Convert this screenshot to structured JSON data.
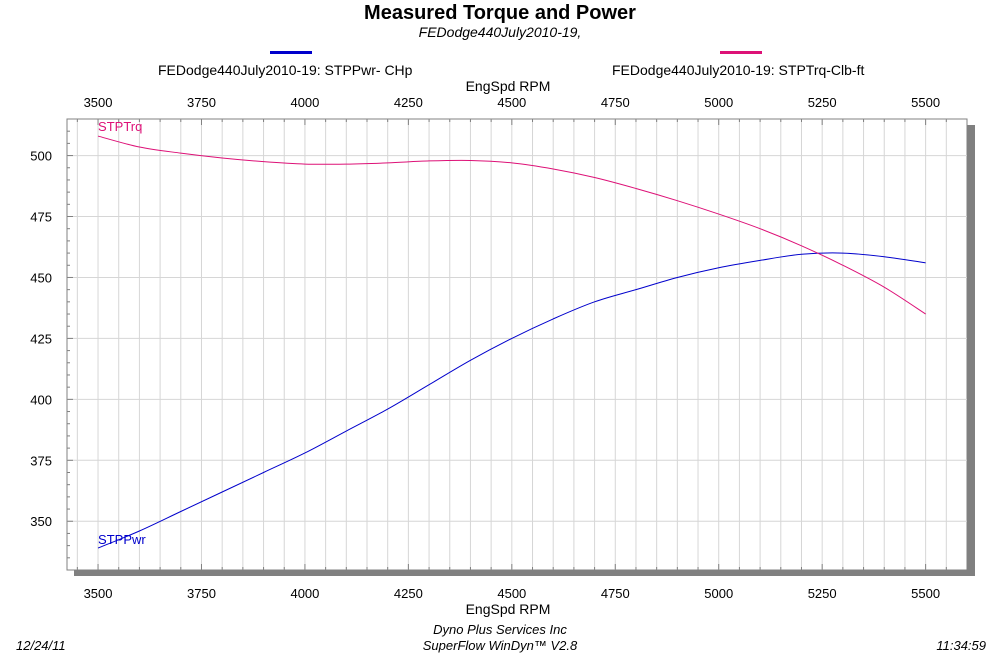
{
  "header": {
    "title": "Measured Torque and Power",
    "subtitle": "FEDodge440July2010-19,"
  },
  "legend": [
    {
      "label": "FEDodge440July2010-19: STPPwr- CHp",
      "color": "#0000cc"
    },
    {
      "label": "FEDodge440July2010-19: STPTrq-Clb-ft",
      "color": "#dd1177"
    }
  ],
  "footer": {
    "date": "12/24/11",
    "company": "Dyno Plus Services Inc",
    "software": "SuperFlow WinDyn™ V2.8",
    "time": "11:34:59"
  },
  "chart_data": {
    "type": "line",
    "title": "Measured Torque and Power",
    "subtitle": "FEDodge440July2010-19,",
    "xlabel": "EngSpd  RPM",
    "x_top_label": "EngSpd  RPM",
    "ylabel": "",
    "xlim": [
      3425,
      5600
    ],
    "ylim": [
      330,
      515
    ],
    "x_ticks": [
      3500,
      3750,
      4000,
      4250,
      4500,
      4750,
      5000,
      5250,
      5500
    ],
    "y_ticks": [
      350,
      375,
      400,
      425,
      450,
      475,
      500
    ],
    "grid": true,
    "legend_position": "top",
    "series": [
      {
        "name": "FEDodge440July2010-19: STPPwr- CHp",
        "label": "STPPwr",
        "color": "#0000cc",
        "x": [
          3500,
          3600,
          3700,
          3800,
          3900,
          4000,
          4100,
          4200,
          4300,
          4400,
          4500,
          4600,
          4700,
          4800,
          4900,
          5000,
          5100,
          5200,
          5300,
          5400,
          5500
        ],
        "values": [
          339,
          346,
          354,
          362,
          370,
          378,
          387,
          396,
          406,
          416,
          425,
          433,
          440,
          445,
          450,
          454,
          457,
          459.5,
          460,
          458.5,
          456
        ]
      },
      {
        "name": "FEDodge440July2010-19: STPTrq-Clb-ft",
        "label": "STPTrq",
        "color": "#dd1177",
        "x": [
          3500,
          3600,
          3700,
          3800,
          3900,
          4000,
          4100,
          4200,
          4300,
          4400,
          4500,
          4600,
          4700,
          4800,
          4900,
          5000,
          5100,
          5200,
          5300,
          5400,
          5500
        ],
        "values": [
          508,
          503.5,
          501,
          499,
          497.5,
          496.5,
          496.5,
          497,
          497.8,
          498,
          497,
          494.5,
          491,
          486.5,
          481.5,
          476,
          470,
          463,
          455,
          446,
          435
        ]
      }
    ]
  }
}
